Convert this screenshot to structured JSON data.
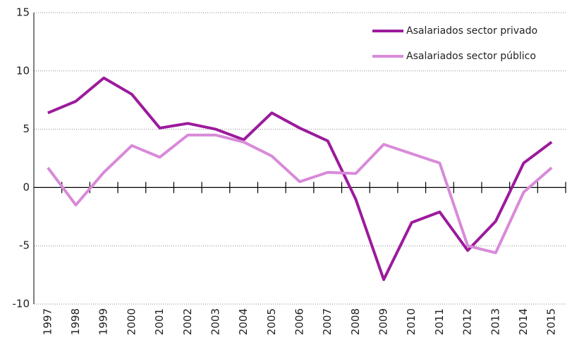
{
  "chart_data": {
    "type": "line",
    "categories": [
      "1997",
      "1998",
      "1999",
      "2000",
      "2001",
      "2002",
      "2003",
      "2004",
      "2005",
      "2006",
      "2007",
      "2008",
      "2009",
      "2010",
      "2011",
      "2012",
      "2013",
      "2014",
      "2015"
    ],
    "series": [
      {
        "name": "Asalariados sector privado",
        "color": "#9c1a9c",
        "values": [
          6.4,
          7.4,
          9.4,
          8.0,
          5.1,
          5.5,
          5.0,
          4.1,
          6.4,
          5.1,
          4.0,
          -1.0,
          -7.9,
          -3.0,
          -2.1,
          -5.4,
          -2.9,
          2.1,
          3.9
        ]
      },
      {
        "name": "Asalariados sector público",
        "color": "#d98ad9",
        "values": [
          1.7,
          -1.5,
          1.3,
          3.6,
          2.6,
          4.5,
          4.5,
          3.9,
          2.7,
          0.5,
          1.3,
          1.2,
          3.7,
          2.9,
          2.1,
          -5.0,
          -5.6,
          -0.4,
          1.7
        ]
      }
    ],
    "ylim": [
      -10,
      15
    ],
    "yticks": [
      -10,
      -5,
      0,
      5,
      10,
      15
    ],
    "grid": true,
    "legend": "upper right"
  }
}
